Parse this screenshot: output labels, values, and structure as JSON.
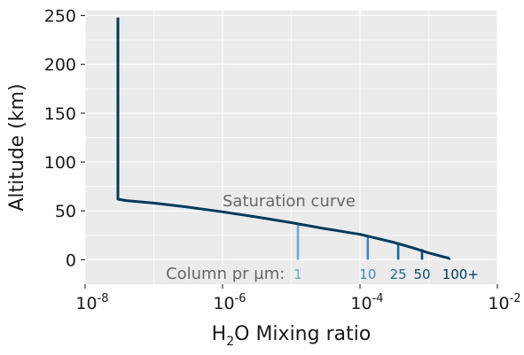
{
  "chart_data": {
    "type": "line",
    "xlabel_main": "H",
    "xlabel_sub": "2",
    "xlabel_rest": "O Mixing ratio",
    "ylabel": "Altitude (km)",
    "x_scale": "log",
    "xlim": [
      1e-08,
      0.01
    ],
    "ylim": [
      -25,
      255
    ],
    "x_ticks": [
      {
        "base": "10",
        "exp": "-8",
        "value": 1e-08
      },
      {
        "base": "10",
        "exp": "-6",
        "value": 1e-06
      },
      {
        "base": "10",
        "exp": "-4",
        "value": 0.0001
      },
      {
        "base": "10",
        "exp": "-2",
        "value": 0.01
      }
    ],
    "y_ticks": [
      {
        "label": "0",
        "value": 0
      },
      {
        "label": "50",
        "value": 50
      },
      {
        "label": "100",
        "value": 100
      },
      {
        "label": "150",
        "value": 150
      },
      {
        "label": "200",
        "value": 200
      },
      {
        "label": "250",
        "value": 250
      }
    ],
    "grid": true,
    "background": "#ebebeb",
    "series": [
      {
        "color": "#003a5c",
        "points": [
          [
            3e-08,
            248
          ],
          [
            3e-08,
            62
          ],
          [
            4e-08,
            60.5
          ],
          [
            1e-07,
            58
          ],
          [
            3e-07,
            54
          ],
          [
            1e-06,
            49
          ],
          [
            3e-06,
            44
          ],
          [
            1e-05,
            38
          ],
          [
            3e-05,
            32
          ],
          [
            0.0001,
            26
          ],
          [
            0.0003,
            18
          ],
          [
            0.0006,
            12
          ],
          [
            0.001,
            7
          ],
          [
            0.002,
            1.5
          ]
        ]
      }
    ],
    "annotation": {
      "text": "Saturation curve",
      "x": 1e-06,
      "y": 60
    },
    "column_label": "Column pr µm:",
    "column_label_pos": {
      "x": 1.3e-05,
      "y": -14
    },
    "column_markers": [
      {
        "label": "1",
        "x": 1.25e-05,
        "y_top": 38,
        "color": "#6fa9cf",
        "label_x": 1.25e-05
      },
      {
        "label": "10",
        "x": 0.00013,
        "y_top": 25,
        "color": "#3d88b8",
        "label_x": 0.00013
      },
      {
        "label": "25",
        "x": 0.00036,
        "y_top": 17,
        "color": "#1c6a9c",
        "label_x": 0.00036
      },
      {
        "label": "50",
        "x": 0.0008,
        "y_top": 11,
        "color": "#0e4d75",
        "label_x": 0.0008
      },
      {
        "label": "100+",
        "x": 0.002,
        "y_top": 1.5,
        "color": "#003a5c",
        "label_x": 0.0029
      }
    ]
  }
}
